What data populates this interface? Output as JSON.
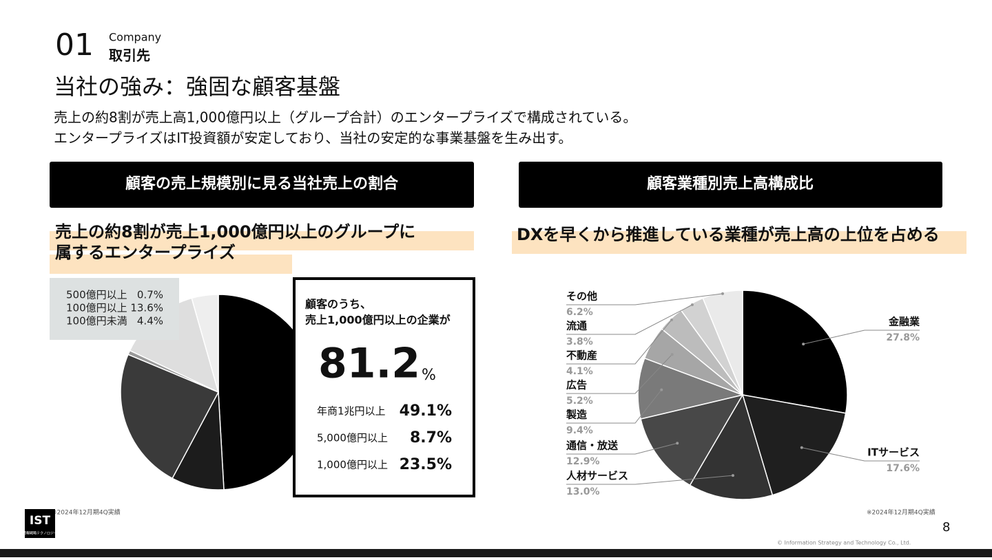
{
  "header": {
    "number": "01",
    "label": "Company",
    "section": "取引先"
  },
  "title": "当社の強み：強固な顧客基盤",
  "lead": [
    "売上の約8割が売上高1,000億円以上（グループ合計）のエンタープライズで構成されている。",
    "エンタープライズはIT投資額が安定しており、当社の安定的な事業基盤を生み出す。"
  ],
  "chart_data": [
    {
      "type": "pie",
      "title": "顧客の売上規模別に見る当社売上の割合",
      "subtitle": [
        "売上の約8割が売上1,000億円以上のグループに",
        "属するエンタープライズ"
      ],
      "categories": [
        "年商1兆円以上",
        "5,000億円以上",
        "1,000億円以上",
        "500億円以上",
        "100億円以上",
        "100億円未満"
      ],
      "values": [
        49.1,
        8.7,
        23.5,
        0.7,
        13.6,
        4.4
      ],
      "value_labels": [
        "49.1%",
        "8.7%",
        "23.5%",
        "0.7%",
        "13.6%",
        "4.4%"
      ],
      "colors": [
        "#000000",
        "#1c1c1c",
        "#3a3a3a",
        "#9a9a9a",
        "#dedede",
        "#eeeeee"
      ],
      "annotations": [
        "顧客のうち、",
        "売上1,000億円以上の企業が"
      ],
      "headline": "81.2",
      "headline_unit": "%"
    },
    {
      "type": "pie",
      "title": "顧客業種別売上高構成比",
      "subtitle": "DXを早くから推進している業種が売上高の上位を占める",
      "categories": [
        "金融業",
        "ITサービス",
        "人材サービス",
        "通信・放送",
        "製造",
        "広告",
        "不動産",
        "流通",
        "その他"
      ],
      "values": [
        27.8,
        17.6,
        13.0,
        12.9,
        9.4,
        5.2,
        4.1,
        3.8,
        6.2
      ],
      "value_labels": [
        "27.8%",
        "17.6%",
        "13.0%",
        "12.9%",
        "9.4%",
        "5.2%",
        "4.1%",
        "3.8%",
        "6.2%"
      ],
      "colors": [
        "#000000",
        "#1f1f1f",
        "#333333",
        "#484848",
        "#7a7a7a",
        "#a6a6a6",
        "#bcbcbc",
        "#d2d2d2",
        "#eaeaea"
      ]
    }
  ],
  "notes": [
    "※2024年12月期4Q実績",
    "※2024年12月期4Q実績"
  ],
  "page": "8",
  "copyright": "© Information Strategy and Technology Co., Ltd.",
  "logo": {
    "mark": "IST",
    "name": "情報戦略テクノロジー"
  }
}
